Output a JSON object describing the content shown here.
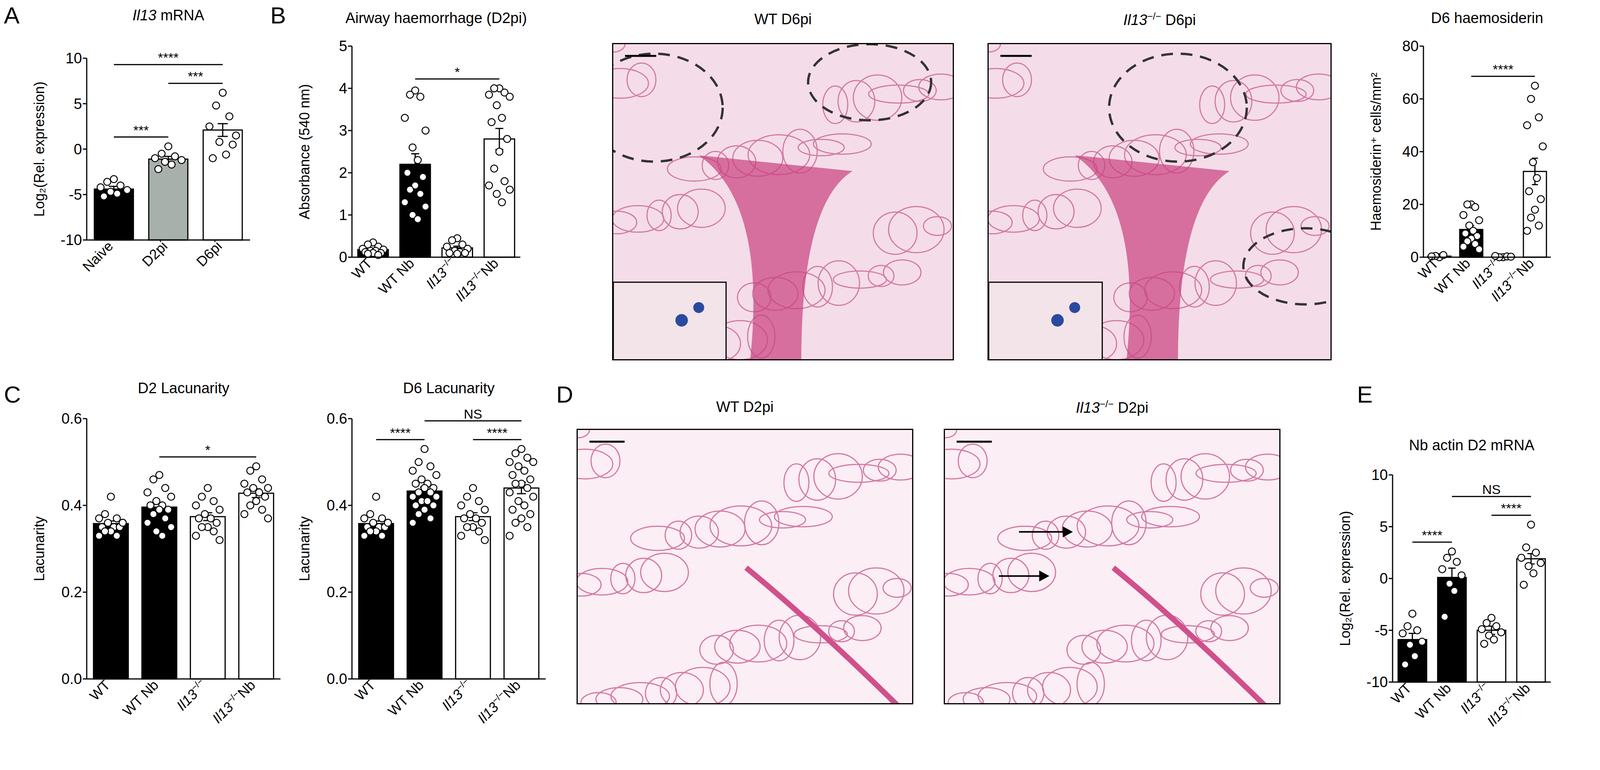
{
  "panel_labels": [
    "A",
    "B",
    "C",
    "D",
    "E"
  ],
  "images": [
    {
      "panel": "B",
      "title": "WT D6pi"
    },
    {
      "panel": "B",
      "title": "Il13−/− D6pi"
    },
    {
      "panel": "D",
      "title": "WT D2pi"
    },
    {
      "panel": "D",
      "title": "Il13−/− D2pi"
    }
  ],
  "chart_data": [
    {
      "type": "bar",
      "title": "Il13 mRNA",
      "y_label": "Log₂(Rel. expression)",
      "categories": [
        "Naive",
        "D2pi",
        "D6pi"
      ],
      "values": [
        -4.4,
        -1.1,
        2.1
      ],
      "errors": [
        0.3,
        0.3,
        0.7
      ],
      "points": [
        [
          -3.3,
          -3.6,
          -4.0,
          -4.2,
          -4.5,
          -4.7,
          -4.9,
          -5.2
        ],
        [
          0.3,
          -0.5,
          -0.8,
          -1.0,
          -1.2,
          -1.4,
          -1.7,
          -2.2
        ],
        [
          6.2,
          4.8,
          3.6,
          2.5,
          1.5,
          0.8,
          -0.6,
          -1.0,
          0.5
        ]
      ],
      "colors": [
        "#000000",
        "#a8b0ac",
        "#ffffff"
      ],
      "ylim": [
        -10,
        10
      ],
      "yticks": [
        -10,
        -5,
        0,
        5,
        10
      ],
      "comparisons": [
        {
          "from": "Naive",
          "to": "D2pi",
          "label": "***"
        },
        {
          "from": "D2pi",
          "to": "D6pi",
          "label": "***"
        },
        {
          "from": "Naive",
          "to": "D6pi",
          "label": "****"
        }
      ]
    },
    {
      "type": "bar",
      "title": "Airway haemorrhage (D2pi)",
      "y_label": "Absorbance (540 nm)",
      "categories": [
        "WT",
        "WT Nb",
        "Il13−/−",
        "Il13−/−Nb"
      ],
      "values": [
        0.18,
        2.2,
        0.22,
        2.8
      ],
      "errors": [
        0.03,
        0.25,
        0.04,
        0.25
      ],
      "points": [
        [
          0.35,
          0.3,
          0.25,
          0.2,
          0.18,
          0.15,
          0.15,
          0.12,
          0.1,
          0.1,
          0.08,
          0.05
        ],
        [
          3.95,
          3.85,
          3.8,
          3.3,
          3.0,
          2.6,
          2.3,
          2.0,
          1.9,
          1.7,
          1.6,
          1.5,
          1.3,
          1.2,
          1.0,
          0.9
        ],
        [
          0.45,
          0.4,
          0.3,
          0.25,
          0.2,
          0.15,
          0.12,
          0.1,
          0.1,
          0.08
        ],
        [
          4.0,
          4.0,
          3.9,
          3.85,
          3.8,
          3.6,
          3.3,
          3.2,
          2.8,
          2.5,
          2.1,
          1.8,
          1.7,
          1.6,
          1.5,
          1.3
        ]
      ],
      "colors": [
        "#000000",
        "#000000",
        "#ffffff",
        "#ffffff"
      ],
      "ylim": [
        0,
        5
      ],
      "yticks": [
        0,
        1,
        2,
        3,
        4,
        5
      ],
      "comparisons": [
        {
          "from": "WT Nb",
          "to": "Il13−/−Nb",
          "label": "*"
        }
      ]
    },
    {
      "type": "bar",
      "title": "D6 haemosiderin",
      "y_label": "Haemosiderin⁺ cells/mm²",
      "categories": [
        "WT",
        "WT Nb",
        "Il13−/−",
        "Il13−/−Nb"
      ],
      "values": [
        0.4,
        10.5,
        0.2,
        32.5
      ],
      "errors": [
        0.2,
        1.5,
        0.1,
        5.0
      ],
      "points": [
        [
          0,
          0.5,
          0.8,
          0.3
        ],
        [
          20,
          20,
          19,
          16,
          14,
          12,
          10,
          9,
          8,
          7,
          6,
          5,
          4,
          3
        ],
        [
          0,
          0,
          0.3,
          0.5,
          0.2
        ],
        [
          65,
          60,
          53,
          50,
          42,
          36,
          30,
          25,
          22,
          18,
          15,
          12,
          10
        ]
      ],
      "colors": [
        "#000000",
        "#000000",
        "#ffffff",
        "#ffffff"
      ],
      "ylim": [
        0,
        80
      ],
      "yticks": [
        0,
        20,
        40,
        60,
        80
      ],
      "comparisons": [
        {
          "from": "WT Nb",
          "to": "Il13−/−Nb",
          "label": "****"
        }
      ]
    },
    {
      "type": "bar",
      "title": "D2 Lacunarity",
      "y_label": "Lacunarity",
      "categories": [
        "WT",
        "WT Nb",
        "Il13−/−",
        "Il13−/−Nb"
      ],
      "values": [
        0.358,
        0.396,
        0.374,
        0.428
      ],
      "errors": [
        0.006,
        0.011,
        0.009,
        0.01
      ],
      "points": [
        [
          0.42,
          0.38,
          0.37,
          0.37,
          0.36,
          0.36,
          0.35,
          0.35,
          0.35,
          0.34,
          0.34,
          0.33,
          0.33,
          0.36
        ],
        [
          0.47,
          0.46,
          0.44,
          0.43,
          0.42,
          0.41,
          0.4,
          0.4,
          0.39,
          0.39,
          0.38,
          0.37,
          0.36,
          0.35,
          0.34,
          0.33
        ],
        [
          0.44,
          0.42,
          0.41,
          0.4,
          0.39,
          0.38,
          0.37,
          0.37,
          0.36,
          0.35,
          0.35,
          0.34,
          0.33,
          0.32
        ],
        [
          0.49,
          0.48,
          0.46,
          0.45,
          0.44,
          0.44,
          0.43,
          0.43,
          0.42,
          0.41,
          0.4,
          0.39,
          0.38,
          0.37
        ]
      ],
      "colors": [
        "#000000",
        "#000000",
        "#ffffff",
        "#ffffff"
      ],
      "ylim": [
        0,
        0.6
      ],
      "yticks": [
        {
          "value": 0,
          "label": "0.0"
        },
        0.2,
        0.4,
        0.6
      ],
      "comparisons": [
        {
          "from": "WT Nb",
          "to": "Il13−/−Nb",
          "label": "*"
        }
      ]
    },
    {
      "type": "bar",
      "title": "D6 Lacunarity",
      "y_label": "Lacunarity",
      "categories": [
        "WT",
        "WT Nb",
        "Il13−/−",
        "Il13−/−Nb"
      ],
      "values": [
        0.358,
        0.433,
        0.374,
        0.44
      ],
      "errors": [
        0.006,
        0.009,
        0.009,
        0.013
      ],
      "points": [
        [
          0.42,
          0.38,
          0.37,
          0.37,
          0.36,
          0.36,
          0.35,
          0.35,
          0.35,
          0.34,
          0.34,
          0.33,
          0.33,
          0.36
        ],
        [
          0.53,
          0.5,
          0.49,
          0.48,
          0.47,
          0.46,
          0.45,
          0.45,
          0.44,
          0.44,
          0.43,
          0.43,
          0.42,
          0.42,
          0.41,
          0.41,
          0.4,
          0.4,
          0.39,
          0.38,
          0.37,
          0.36
        ],
        [
          0.44,
          0.42,
          0.41,
          0.4,
          0.39,
          0.38,
          0.37,
          0.37,
          0.36,
          0.35,
          0.35,
          0.34,
          0.33,
          0.32
        ],
        [
          0.53,
          0.52,
          0.51,
          0.5,
          0.5,
          0.49,
          0.48,
          0.47,
          0.46,
          0.45,
          0.45,
          0.44,
          0.43,
          0.42,
          0.41,
          0.4,
          0.39,
          0.38,
          0.37,
          0.36,
          0.35,
          0.33
        ]
      ],
      "colors": [
        "#000000",
        "#000000",
        "#ffffff",
        "#ffffff"
      ],
      "ylim": [
        0,
        0.6
      ],
      "yticks": [
        {
          "value": 0,
          "label": "0.0"
        },
        0.2,
        0.4,
        0.6
      ],
      "comparisons": [
        {
          "from": "WT",
          "to": "WT Nb",
          "label": "****"
        },
        {
          "from": "Il13−/−",
          "to": "Il13−/−Nb",
          "label": "****"
        },
        {
          "from": "WT Nb",
          "to": "Il13−/−Nb",
          "label": "NS"
        }
      ]
    },
    {
      "type": "bar",
      "title": "Nb actin D2 mRNA",
      "y_label": "Log₂(Rel. expression)",
      "categories": [
        "WT",
        "WT Nb",
        "Il13−/−",
        "Il13−/−Nb"
      ],
      "values": [
        -5.9,
        0.1,
        -5.0,
        1.9
      ],
      "errors": [
        0.6,
        0.9,
        0.4,
        0.5
      ],
      "points": [
        [
          -3.4,
          -4.6,
          -5.0,
          -5.3,
          -6.1,
          -6.4,
          -7.5,
          -8.3
        ],
        [
          2.6,
          2.0,
          1.6,
          0.9,
          0.3,
          -0.5,
          -1.2,
          -3.7
        ],
        [
          -3.8,
          -4.3,
          -4.6,
          -4.9,
          -5.2,
          -5.5,
          -5.9,
          -6.3
        ],
        [
          5.2,
          3.0,
          2.5,
          2.0,
          1.5,
          1.2,
          0.5,
          -0.6
        ]
      ],
      "colors": [
        "#000000",
        "#000000",
        "#ffffff",
        "#ffffff"
      ],
      "ylim": [
        -10,
        10
      ],
      "yticks": [
        -10,
        -5,
        0,
        5,
        10
      ],
      "comparisons": [
        {
          "from": "WT",
          "to": "WT Nb",
          "label": "****"
        },
        {
          "from": "Il13−/−",
          "to": "Il13−/−Nb",
          "label": "****"
        },
        {
          "from": "WT Nb",
          "to": "Il13−/−Nb",
          "label": "NS"
        }
      ]
    }
  ]
}
